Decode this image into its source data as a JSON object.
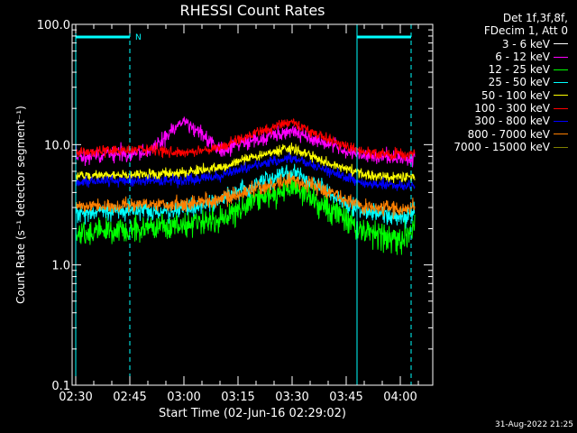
{
  "chart_data": {
    "type": "line",
    "title": "RHESSI Count Rates",
    "xlabel": "Start Time (02-Jun-16 02:29:02)",
    "ylabel": "Count Rate (s⁻¹ detector segment⁻¹)",
    "yscale": "log",
    "ylim": [
      0.1,
      100.0
    ],
    "y_ticks": [
      "100.0",
      "10.0",
      "1.0",
      "0.1"
    ],
    "xlim": [
      "02:29",
      "04:09"
    ],
    "x_ticks": [
      "02:30",
      "02:45",
      "03:00",
      "03:15",
      "03:30",
      "03:45",
      "04:00"
    ],
    "legend_header": [
      "Det 1f,3f,8f,",
      "FDecim 1, Att 0"
    ],
    "legend_position": "outside-right",
    "attenuator_flag": "N",
    "intervals": [
      {
        "start": "02:30",
        "end": "02:45",
        "line_at_top": true
      },
      {
        "start": "03:48",
        "end": "04:03",
        "line_at_top": true
      }
    ],
    "series": [
      {
        "name": "3 - 6 keV",
        "color": "#000000",
        "profile": [
          {
            "t": "02:30",
            "v": 1.6
          },
          {
            "t": "02:40",
            "v": 1.7
          },
          {
            "t": "02:50",
            "v": 1.8
          },
          {
            "t": "03:00",
            "v": 1.9
          },
          {
            "t": "03:10",
            "v": 2.0
          },
          {
            "t": "03:20",
            "v": 3.0
          },
          {
            "t": "03:30",
            "v": 4.0
          },
          {
            "t": "03:40",
            "v": 2.4
          },
          {
            "t": "03:50",
            "v": 1.5
          },
          {
            "t": "04:00",
            "v": 1.2
          },
          {
            "t": "04:04",
            "v": 1.8
          }
        ]
      },
      {
        "name": "6 - 12 keV",
        "color": "#ff00ff",
        "profile": [
          {
            "t": "02:30",
            "v": 8.0
          },
          {
            "t": "02:40",
            "v": 8.3
          },
          {
            "t": "02:50",
            "v": 8.5
          },
          {
            "t": "03:00",
            "v": 16.0
          },
          {
            "t": "03:10",
            "v": 9.0
          },
          {
            "t": "03:20",
            "v": 11.0
          },
          {
            "t": "03:30",
            "v": 13.0
          },
          {
            "t": "03:40",
            "v": 10.0
          },
          {
            "t": "03:50",
            "v": 8.0
          },
          {
            "t": "04:00",
            "v": 7.6
          },
          {
            "t": "04:04",
            "v": 7.8
          }
        ]
      },
      {
        "name": "12 - 25 keV",
        "color": "#00ff00",
        "profile": [
          {
            "t": "02:30",
            "v": 1.8
          },
          {
            "t": "02:40",
            "v": 1.9
          },
          {
            "t": "02:50",
            "v": 2.0
          },
          {
            "t": "03:00",
            "v": 2.1
          },
          {
            "t": "03:10",
            "v": 2.4
          },
          {
            "t": "03:20",
            "v": 3.5
          },
          {
            "t": "03:30",
            "v": 4.5
          },
          {
            "t": "03:40",
            "v": 3.0
          },
          {
            "t": "03:50",
            "v": 1.9
          },
          {
            "t": "04:00",
            "v": 1.6
          },
          {
            "t": "04:04",
            "v": 2.1
          }
        ]
      },
      {
        "name": "25 - 50 keV",
        "color": "#00ffff",
        "profile": [
          {
            "t": "02:30",
            "v": 2.7
          },
          {
            "t": "02:40",
            "v": 2.8
          },
          {
            "t": "02:50",
            "v": 2.8
          },
          {
            "t": "03:00",
            "v": 2.9
          },
          {
            "t": "03:10",
            "v": 3.4
          },
          {
            "t": "03:20",
            "v": 4.8
          },
          {
            "t": "03:30",
            "v": 6.0
          },
          {
            "t": "03:40",
            "v": 4.0
          },
          {
            "t": "03:50",
            "v": 2.7
          },
          {
            "t": "04:00",
            "v": 2.5
          },
          {
            "t": "04:04",
            "v": 2.7
          }
        ]
      },
      {
        "name": "50 - 100 keV",
        "color": "#ffff00",
        "profile": [
          {
            "t": "02:30",
            "v": 5.5
          },
          {
            "t": "02:40",
            "v": 5.6
          },
          {
            "t": "02:50",
            "v": 5.6
          },
          {
            "t": "03:00",
            "v": 5.8
          },
          {
            "t": "03:10",
            "v": 6.5
          },
          {
            "t": "03:20",
            "v": 8.0
          },
          {
            "t": "03:30",
            "v": 9.5
          },
          {
            "t": "03:40",
            "v": 7.0
          },
          {
            "t": "03:50",
            "v": 5.6
          },
          {
            "t": "04:00",
            "v": 5.3
          },
          {
            "t": "04:04",
            "v": 5.4
          }
        ]
      },
      {
        "name": "100 - 300 keV",
        "color": "#ff0000",
        "profile": [
          {
            "t": "02:30",
            "v": 8.5
          },
          {
            "t": "02:40",
            "v": 9.0
          },
          {
            "t": "02:50",
            "v": 9.2
          },
          {
            "t": "03:00",
            "v": 8.5
          },
          {
            "t": "03:10",
            "v": 9.5
          },
          {
            "t": "03:20",
            "v": 12.5
          },
          {
            "t": "03:30",
            "v": 15.5
          },
          {
            "t": "03:40",
            "v": 11.0
          },
          {
            "t": "03:50",
            "v": 8.6
          },
          {
            "t": "04:00",
            "v": 8.2
          },
          {
            "t": "04:04",
            "v": 8.4
          }
        ]
      },
      {
        "name": "300 - 800 keV",
        "color": "#0000ff",
        "profile": [
          {
            "t": "02:30",
            "v": 4.8
          },
          {
            "t": "02:40",
            "v": 5.0
          },
          {
            "t": "02:50",
            "v": 5.0
          },
          {
            "t": "03:00",
            "v": 5.0
          },
          {
            "t": "03:10",
            "v": 5.5
          },
          {
            "t": "03:20",
            "v": 6.8
          },
          {
            "t": "03:30",
            "v": 7.8
          },
          {
            "t": "03:40",
            "v": 6.0
          },
          {
            "t": "03:50",
            "v": 4.8
          },
          {
            "t": "04:00",
            "v": 4.5
          },
          {
            "t": "04:04",
            "v": 4.6
          }
        ]
      },
      {
        "name": "800 - 7000 keV",
        "color": "#ff8000",
        "profile": [
          {
            "t": "02:30",
            "v": 3.0
          },
          {
            "t": "02:40",
            "v": 3.1
          },
          {
            "t": "02:50",
            "v": 3.2
          },
          {
            "t": "03:00",
            "v": 3.2
          },
          {
            "t": "03:10",
            "v": 3.5
          },
          {
            "t": "03:20",
            "v": 4.3
          },
          {
            "t": "03:30",
            "v": 5.2
          },
          {
            "t": "03:40",
            "v": 4.0
          },
          {
            "t": "03:50",
            "v": 3.0
          },
          {
            "t": "04:00",
            "v": 2.9
          },
          {
            "t": "04:04",
            "v": 3.0
          }
        ]
      },
      {
        "name": "7000 - 15000 keV",
        "color": "#808000",
        "profile": [
          {
            "t": "02:30",
            "v": 3.0
          },
          {
            "t": "02:40",
            "v": 3.1
          },
          {
            "t": "02:50",
            "v": 3.2
          },
          {
            "t": "03:00",
            "v": 3.2
          },
          {
            "t": "03:10",
            "v": 3.5
          },
          {
            "t": "03:20",
            "v": 4.3
          },
          {
            "t": "03:30",
            "v": 5.2
          },
          {
            "t": "03:40",
            "v": 4.0
          },
          {
            "t": "03:50",
            "v": 3.0
          },
          {
            "t": "04:00",
            "v": 2.9
          },
          {
            "t": "04:04",
            "v": 3.0
          }
        ]
      }
    ],
    "draw_order": [
      8,
      0,
      2,
      3,
      7,
      4,
      1,
      5,
      6
    ],
    "noise": [
      0.12,
      0.1,
      0.18,
      0.12,
      0.07,
      0.07,
      0.07,
      0.1,
      0.0
    ],
    "timestamp": "31-Aug-2022 21:25"
  }
}
